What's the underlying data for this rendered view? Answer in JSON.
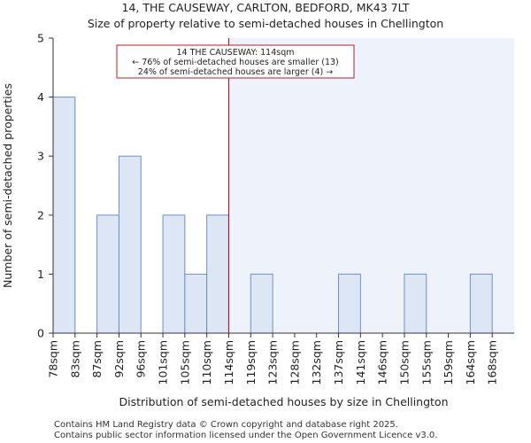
{
  "header": {
    "title_line1": "14, THE CAUSEWAY, CARLTON, BEDFORD, MK43 7LT",
    "title_line2": "Size of property relative to semi-detached houses in Chellington"
  },
  "footer": {
    "line1": "Contains HM Land Registry data © Crown copyright and database right 2025.",
    "line2": "Contains public sector information licensed under the Open Government Licence v3.0."
  },
  "chart_data": {
    "type": "bar",
    "title": "Size of property relative to semi-detached houses in Chellington",
    "xlabel": "Distribution of semi-detached houses by size in Chellington",
    "ylabel": "Number of semi-detached properties",
    "categories": [
      "78sqm",
      "83sqm",
      "87sqm",
      "92sqm",
      "96sqm",
      "101sqm",
      "105sqm",
      "110sqm",
      "114sqm",
      "119sqm",
      "123sqm",
      "128sqm",
      "132sqm",
      "137sqm",
      "141sqm",
      "146sqm",
      "150sqm",
      "155sqm",
      "159sqm",
      "164sqm",
      "168sqm"
    ],
    "values": [
      4,
      0,
      2,
      3,
      0,
      2,
      1,
      2,
      0,
      1,
      0,
      0,
      0,
      1,
      0,
      0,
      1,
      0,
      0,
      1,
      0
    ],
    "ylim": [
      0,
      5
    ],
    "yticks": [
      0,
      1,
      2,
      3,
      4,
      5
    ],
    "marker_index": 8,
    "annotation": {
      "line1": "14 THE CAUSEWAY: 114sqm",
      "line2": "← 76% of semi-detached houses are smaller (13)",
      "line3": "24% of semi-detached houses are larger (4) →"
    },
    "colors": {
      "bar_fill": "#dce6f4",
      "bar_stroke": "#6f8fc4",
      "highlight_bg": "#eef2fb",
      "marker": "#b0202a",
      "axis": "#333333"
    }
  }
}
